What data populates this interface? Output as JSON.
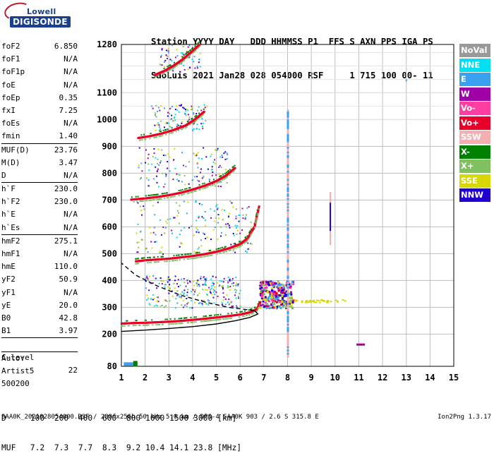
{
  "logo": {
    "line1": "Lowell",
    "line2": "DIGISONDE"
  },
  "header": {
    "line1": "Station YYYY DAY   DDD HHMMSS P1  FFS S AXN PPS IGA PS",
    "line2": "SaoLuis 2021 Jan28 028 054000 RSF     1 715 100 00- 11"
  },
  "params": {
    "group1": [
      {
        "name": "foF2",
        "value": "6.850"
      },
      {
        "name": "foF1",
        "value": "N/A"
      },
      {
        "name": "foF1p",
        "value": "N/A"
      },
      {
        "name": "foE",
        "value": "N/A"
      },
      {
        "name": "foEp",
        "value": "0.35"
      },
      {
        "name": "fxI",
        "value": "7.25"
      },
      {
        "name": "foEs",
        "value": "N/A"
      },
      {
        "name": "fmin",
        "value": "1.40"
      }
    ],
    "group2": [
      {
        "name": "MUF(D)",
        "value": "23.76"
      },
      {
        "name": "M(D)",
        "value": "3.47"
      },
      {
        "name": "D",
        "value": "N/A"
      }
    ],
    "group3": [
      {
        "name": "h`F",
        "value": "230.0"
      },
      {
        "name": "h`F2",
        "value": "230.0"
      },
      {
        "name": "h`E",
        "value": "N/A"
      },
      {
        "name": "h`Es",
        "value": "N/A"
      }
    ],
    "group4": [
      {
        "name": "hmF2",
        "value": "275.1"
      },
      {
        "name": "hmF1",
        "value": "N/A"
      },
      {
        "name": "hmE",
        "value": "110.0"
      },
      {
        "name": "yF2",
        "value": "50.9"
      },
      {
        "name": "yF1",
        "value": "N/A"
      },
      {
        "name": "yE",
        "value": "20.0"
      },
      {
        "name": "B0",
        "value": "42.8"
      },
      {
        "name": "B1",
        "value": "3.97"
      }
    ],
    "clevel": {
      "name": "C-level",
      "value": "22"
    },
    "auto": [
      "Auto:",
      "Artist5",
      "500200"
    ]
  },
  "legend": [
    {
      "label": "NoVal",
      "color": "#999999"
    },
    {
      "label": "NNE",
      "color": "#00e0f0"
    },
    {
      "label": "E",
      "color": "#3aa0f0"
    },
    {
      "label": "W",
      "color": "#a000a8"
    },
    {
      "label": "Vo-",
      "color": "#ff3ca0"
    },
    {
      "label": "Vo+",
      "color": "#e8002a"
    },
    {
      "label": "SSW",
      "color": "#f4b0b0"
    },
    {
      "label": "X-",
      "color": "#008000"
    },
    {
      "label": "X+",
      "color": "#80c060"
    },
    {
      "label": "SSE",
      "color": "#d8d800"
    },
    {
      "label": "NNW",
      "color": "#2000d0"
    }
  ],
  "chart_data": {
    "type": "scatter",
    "x_axis": {
      "min": 1,
      "max": 15,
      "ticks": [
        1,
        2,
        3,
        4,
        5,
        6,
        7,
        8,
        9,
        10,
        11,
        12,
        13,
        14,
        15
      ]
    },
    "y_axis": {
      "min": 80,
      "max": 1280,
      "ticks": [
        80,
        200,
        300,
        400,
        500,
        600,
        700,
        800,
        900,
        1000,
        1100,
        1280
      ]
    },
    "grid": true,
    "legend_placement": "right",
    "traces": [
      {
        "color_key": "Vo+",
        "points": [
          [
            1.0,
            238
          ],
          [
            1.5,
            240
          ],
          [
            2.0,
            241
          ],
          [
            2.5,
            243
          ],
          [
            3.0,
            245
          ],
          [
            3.5,
            248
          ],
          [
            4.0,
            252
          ],
          [
            4.5,
            256
          ],
          [
            5.0,
            261
          ],
          [
            5.5,
            266
          ],
          [
            6.0,
            272
          ],
          [
            6.4,
            280
          ],
          [
            6.7,
            292
          ],
          [
            6.85,
            320
          ]
        ]
      },
      {
        "color_key": "Vo+",
        "points": [
          [
            1.6,
            470
          ],
          [
            2.0,
            474
          ],
          [
            2.5,
            477
          ],
          [
            3.0,
            480
          ],
          [
            3.5,
            485
          ],
          [
            4.0,
            490
          ],
          [
            4.5,
            497
          ],
          [
            5.0,
            506
          ],
          [
            5.5,
            518
          ],
          [
            6.0,
            535
          ],
          [
            6.3,
            555
          ],
          [
            6.6,
            600
          ],
          [
            6.8,
            680
          ]
        ]
      },
      {
        "color_key": "Vo+",
        "points": [
          [
            1.4,
            700
          ],
          [
            2.0,
            705
          ],
          [
            2.5,
            710
          ],
          [
            3.0,
            717
          ],
          [
            3.5,
            726
          ],
          [
            4.0,
            738
          ],
          [
            4.5,
            752
          ],
          [
            5.0,
            770
          ],
          [
            5.4,
            790
          ],
          [
            5.8,
            820
          ]
        ]
      },
      {
        "color_key": "Vo+",
        "points": [
          [
            1.7,
            930
          ],
          [
            2.2,
            937
          ],
          [
            2.7,
            947
          ],
          [
            3.2,
            960
          ],
          [
            3.7,
            977
          ],
          [
            4.1,
            1000
          ],
          [
            4.5,
            1030
          ]
        ]
      },
      {
        "color_key": "Vo+",
        "points": [
          [
            2.4,
            1165
          ],
          [
            2.8,
            1180
          ],
          [
            3.2,
            1200
          ],
          [
            3.6,
            1225
          ],
          [
            4.0,
            1255
          ],
          [
            4.3,
            1280
          ]
        ]
      }
    ],
    "profile": {
      "points": [
        [
          1.0,
          210
        ],
        [
          2.0,
          215
        ],
        [
          3.0,
          221
        ],
        [
          4.0,
          228
        ],
        [
          5.0,
          238
        ],
        [
          5.8,
          250
        ],
        [
          6.4,
          262
        ],
        [
          6.75,
          275
        ],
        [
          6.6,
          288
        ],
        [
          5.5,
          300
        ],
        [
          4.5,
          320
        ],
        [
          3.5,
          345
        ],
        [
          2.5,
          380
        ],
        [
          1.6,
          420
        ],
        [
          1.0,
          465
        ]
      ]
    }
  },
  "bottom": {
    "d_row": "D     100  200  400  600  800 1000 1500 3000 [km]",
    "muf_row": "MUF   7.2  7.3  7.7  8.3  9.2 10.4 14.1 23.8 [MHz]"
  },
  "footer": {
    "left": "SAA0K_2021028054000.RSF / 280fx256h 50 kHz 5.0 km / DPS-4 SAA0K 903 / 2.6 S 315.8 E",
    "right": "Ion2Png 1.3.17"
  }
}
